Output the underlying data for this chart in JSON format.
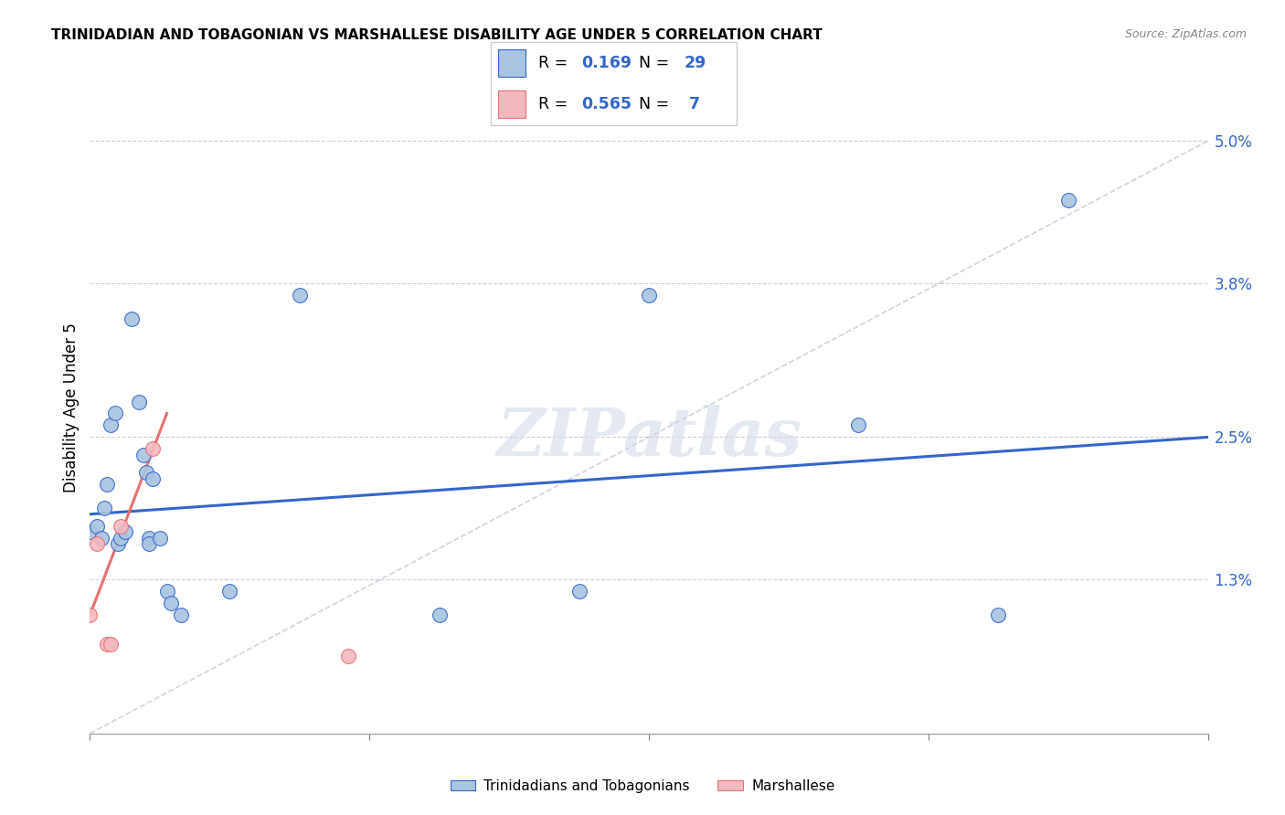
{
  "title": "TRINIDADIAN AND TOBAGONIAN VS MARSHALLESE DISABILITY AGE UNDER 5 CORRELATION CHART",
  "source": "Source: ZipAtlas.com",
  "ylabel": "Disability Age Under 5",
  "right_ytick_vals": [
    5.0,
    3.8,
    2.5,
    1.3
  ],
  "right_ytick_labels": [
    "5.0%",
    "3.8%",
    "2.5%",
    "1.3%"
  ],
  "xlim": [
    0.0,
    8.0
  ],
  "ylim": [
    0.0,
    5.5
  ],
  "legend_R1": "0.169",
  "legend_N1": "29",
  "legend_R2": "0.565",
  "legend_N2": "7",
  "blue_color": "#a8c4e0",
  "pink_color": "#f4b8c1",
  "line_blue": "#3366cc",
  "line_pink": "#e87070",
  "line_diag_color": "#c8c8d8",
  "trinidadian_points": [
    [
      0.0,
      1.7
    ],
    [
      0.05,
      1.75
    ],
    [
      0.08,
      1.65
    ],
    [
      0.1,
      1.9
    ],
    [
      0.12,
      2.1
    ],
    [
      0.15,
      2.6
    ],
    [
      0.18,
      2.7
    ],
    [
      0.2,
      1.6
    ],
    [
      0.22,
      1.65
    ],
    [
      0.25,
      1.7
    ],
    [
      0.3,
      3.5
    ],
    [
      0.35,
      2.8
    ],
    [
      0.38,
      2.35
    ],
    [
      0.4,
      2.2
    ],
    [
      0.42,
      1.65
    ],
    [
      0.42,
      1.6
    ],
    [
      0.45,
      2.15
    ],
    [
      0.5,
      1.65
    ],
    [
      0.55,
      1.2
    ],
    [
      0.58,
      1.1
    ],
    [
      0.65,
      1.0
    ],
    [
      1.0,
      1.2
    ],
    [
      1.5,
      3.7
    ],
    [
      2.5,
      1.0
    ],
    [
      3.5,
      1.2
    ],
    [
      4.0,
      3.7
    ],
    [
      5.5,
      2.6
    ],
    [
      6.5,
      1.0
    ],
    [
      7.0,
      4.5
    ]
  ],
  "marshallese_points": [
    [
      0.0,
      1.0
    ],
    [
      0.05,
      1.6
    ],
    [
      0.12,
      0.75
    ],
    [
      0.15,
      0.75
    ],
    [
      0.22,
      1.75
    ],
    [
      0.45,
      2.4
    ],
    [
      1.85,
      0.65
    ]
  ],
  "blue_trend_x": [
    0.0,
    8.0
  ],
  "blue_trend_y": [
    1.85,
    2.5
  ],
  "pink_trend_x": [
    0.0,
    0.55
  ],
  "pink_trend_y": [
    1.0,
    2.7
  ]
}
